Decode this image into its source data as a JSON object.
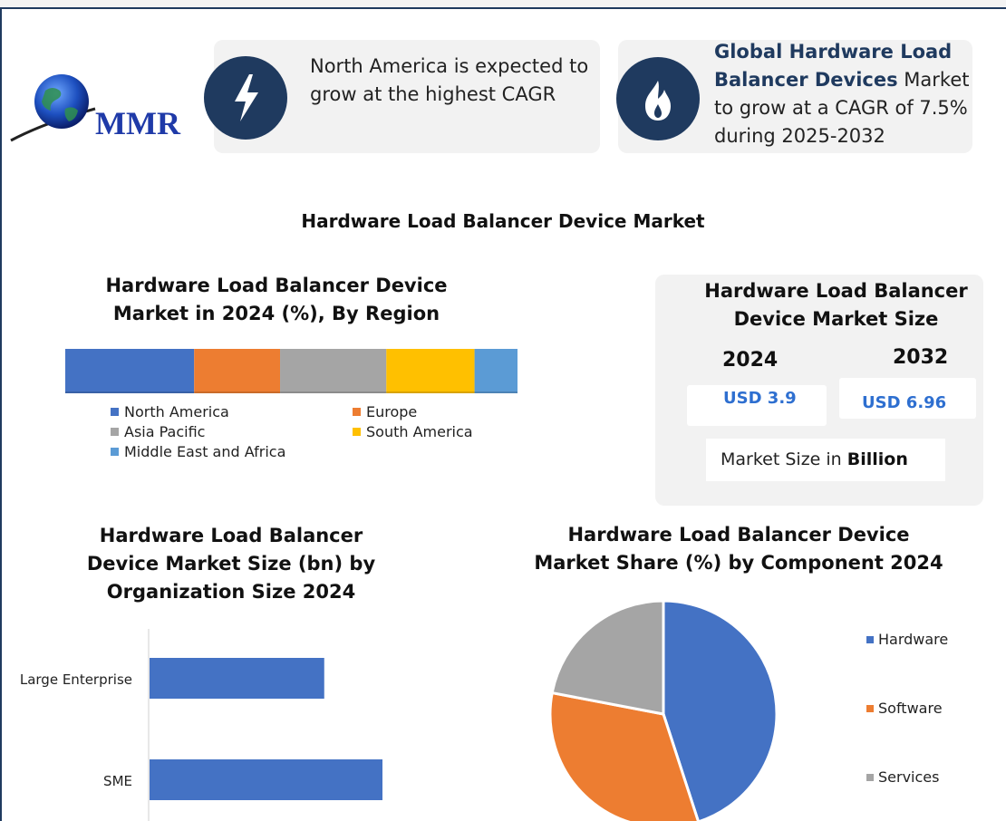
{
  "logo": {
    "text": "MMR"
  },
  "highlight1": {
    "text": "North America is expected to grow at the highest CAGR"
  },
  "highlight2": {
    "bold": "Global Hardware Load Balancer Devices",
    "rest": " Market to grow at a CAGR of 7.5% during 2025-2032"
  },
  "main_title": "Hardware Load Balancer Device Market",
  "market_size": {
    "title": "Hardware Load Balancer Device Market Size",
    "year1": "2024",
    "year2": "2032",
    "value1": "USD 3.9",
    "value2": "USD 6.96",
    "unit_prefix": "Market Size in ",
    "unit_bold": "Billion"
  },
  "colors": {
    "blue": "#4472c4",
    "orange": "#ed7d31",
    "gray": "#a5a5a5",
    "yellow": "#ffc000",
    "lightblue": "#5b9bd5",
    "navy": "#1f3a5f"
  },
  "chart_data": [
    {
      "type": "bar",
      "orientation": "horizontal-stacked",
      "title": "Hardware Load Balancer Device Market in 2024 (%), By Region",
      "series": [
        {
          "name": "North America",
          "values": [
            28.5
          ],
          "color": "#4472c4"
        },
        {
          "name": "Europe",
          "values": [
            19
          ],
          "color": "#ed7d31"
        },
        {
          "name": "Asia Pacific",
          "values": [
            23.5
          ],
          "color": "#a5a5a5"
        },
        {
          "name": "South America",
          "values": [
            19.5
          ],
          "color": "#ffc000"
        },
        {
          "name": "Middle East and Africa",
          "values": [
            9.5
          ],
          "color": "#5b9bd5"
        }
      ],
      "legend_position": "bottom"
    },
    {
      "type": "bar",
      "orientation": "horizontal",
      "title": "Hardware Load Balancer Device Market Size (bn) by Organization Size 2024",
      "categories": [
        "Large Enterprise",
        "SME"
      ],
      "values": [
        1.5,
        2.0
      ],
      "color": "#4472c4"
    },
    {
      "type": "pie",
      "title": "Hardware Load Balancer Device  Market Share (%) by Component 2024",
      "categories": [
        "Hardware",
        "Software",
        "Services"
      ],
      "values": [
        45,
        33,
        22
      ],
      "colors": [
        "#4472c4",
        "#ed7d31",
        "#a5a5a5"
      ],
      "legend_position": "right"
    }
  ]
}
